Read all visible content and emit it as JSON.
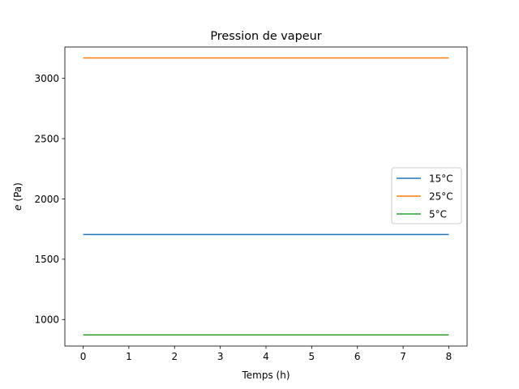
{
  "chart_data": {
    "type": "line",
    "title": "Pression de vapeur",
    "xlabel": "Temps (h)",
    "ylabel_symbol": "e",
    "ylabel_unit": " (Pa)",
    "x": [
      0,
      1,
      2,
      3,
      4,
      5,
      6,
      7,
      8
    ],
    "xlim": [
      -0.4,
      8.4
    ],
    "ylim": [
      780,
      3260
    ],
    "xticks": [
      0,
      1,
      2,
      3,
      4,
      5,
      6,
      7,
      8
    ],
    "yticks": [
      1000,
      1500,
      2000,
      2500,
      3000
    ],
    "grid": false,
    "legend_position": "center-right",
    "series": [
      {
        "name": "15°C",
        "color": "#1f77b4",
        "values": [
          1705,
          1705,
          1705,
          1705,
          1705,
          1705,
          1705,
          1705,
          1705
        ]
      },
      {
        "name": "25°C",
        "color": "#ff7f0e",
        "values": [
          3169,
          3169,
          3169,
          3169,
          3169,
          3169,
          3169,
          3169,
          3169
        ]
      },
      {
        "name": "5°C",
        "color": "#2ca02c",
        "values": [
          872,
          872,
          872,
          872,
          872,
          872,
          872,
          872,
          872
        ]
      }
    ]
  }
}
